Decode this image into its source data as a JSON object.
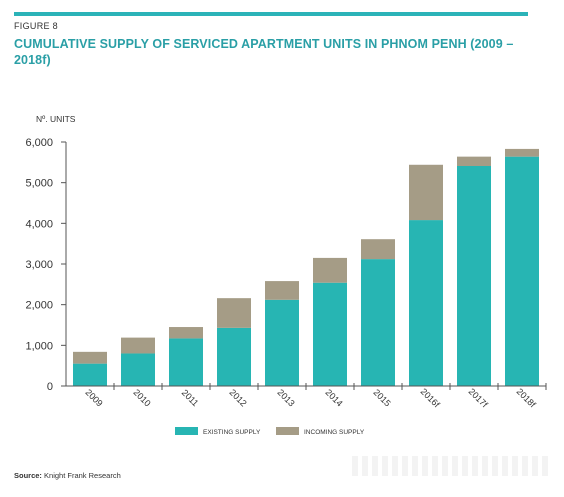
{
  "header": {
    "figure_label": "FIGURE 8",
    "title": "CUMULATIVE SUPPLY OF SERVICED APARTMENT UNITS IN PHNOM PENH (2009 – 2018f)"
  },
  "footer": {
    "source_label": "Source:",
    "source_text": "Knight Frank Research"
  },
  "colors": {
    "accent": "#2bb3b8",
    "title": "#2a9fa6",
    "existing": "#27b5b3",
    "incoming": "#a59c86",
    "axis": "#333333"
  },
  "chart_data": {
    "type": "bar",
    "stacked": true,
    "ylabel": "Nº. UNITS",
    "xlabel": "",
    "ylim": [
      0,
      6000
    ],
    "yticks": [
      0,
      1000,
      2000,
      3000,
      4000,
      5000,
      6000
    ],
    "ytick_labels": [
      "0",
      "1,000",
      "2,000",
      "3,000",
      "4,000",
      "5,000",
      "6,000"
    ],
    "categories": [
      "2009",
      "2010",
      "2011",
      "2012",
      "2013",
      "2014",
      "2015",
      "2016f",
      "2017f",
      "2018f"
    ],
    "series": [
      {
        "name": "EXISTING SUPPLY",
        "color": "#27b5b3",
        "values": [
          550,
          800,
          1170,
          1430,
          2120,
          2540,
          3120,
          4080,
          5410,
          5640
        ]
      },
      {
        "name": "INCOMING SUPPLY",
        "color": "#a59c86",
        "values": [
          290,
          390,
          280,
          730,
          460,
          610,
          490,
          1360,
          230,
          190
        ]
      }
    ],
    "grid": false,
    "legend_position": "bottom-center"
  }
}
